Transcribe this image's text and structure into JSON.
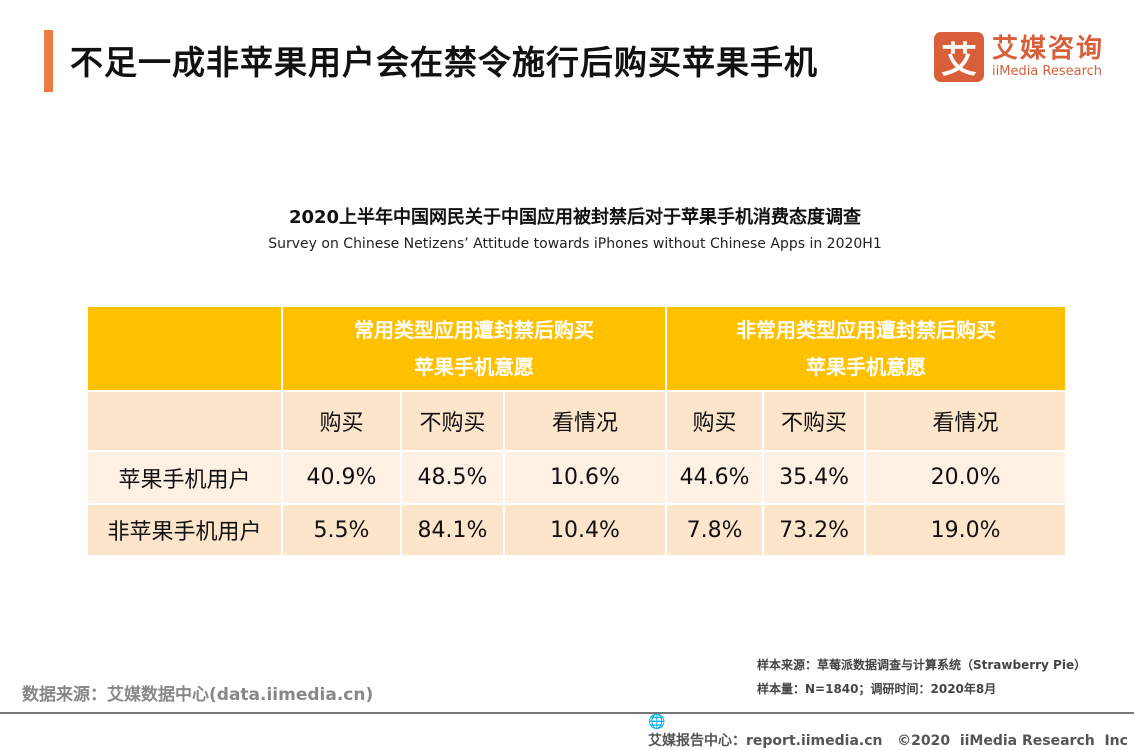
{
  "header": {
    "title": "不足一成非苹果用户会在禁令施行后购买苹果手机",
    "accent_color": "#ee7b43"
  },
  "logo": {
    "mark": "艾",
    "cn": "艾媒咨询",
    "en": "iiMedia Research",
    "color": "#d95f3b"
  },
  "subtitle": {
    "cn": "2020上半年中国网民关于中国应用被封禁后对于苹果手机消费态度调查",
    "en": "Survey on Chinese Netizens’  Attitude towards iPhones without Chinese Apps in 2020H1"
  },
  "table": {
    "groups": [
      "常用类型应用遭封禁后购买苹果手机意愿",
      "非常用类型应用遭封禁后购买苹果手机意愿"
    ],
    "group_lines": [
      [
        "常用类型应用遭封禁后购买",
        "苹果手机意愿"
      ],
      [
        "非常用类型应用遭封禁后购买",
        "苹果手机意愿"
      ]
    ],
    "columns": [
      "购买",
      "不购买",
      "看情况",
      "购买",
      "不购买",
      "看情况"
    ],
    "rows": [
      {
        "label": "苹果手机用户",
        "values": [
          "40.9%",
          "48.5%",
          "10.6%",
          "44.6%",
          "35.4%",
          "20.0%"
        ]
      },
      {
        "label": "非苹果手机用户",
        "values": [
          "5.5%",
          "84.1%",
          "10.4%",
          "7.8%",
          "73.2%",
          "19.0%"
        ]
      }
    ],
    "colors": {
      "header": "#ffc000",
      "subheader": "#fde5cc",
      "row_light": "#fef1e3"
    }
  },
  "source": "数据来源：艾媒数据中心(data.iimedia.cn)",
  "notes": [
    "样本来源：草莓派数据调查与计算系统（Strawberry Pie）",
    "样本量：N=1840；调研时间：2020年8月"
  ],
  "footer": {
    "icon": "globe-cursor-icon",
    "text": "艾媒报告中心：report.iimedia.cn   ©2020  iiMedia Research  Inc"
  }
}
